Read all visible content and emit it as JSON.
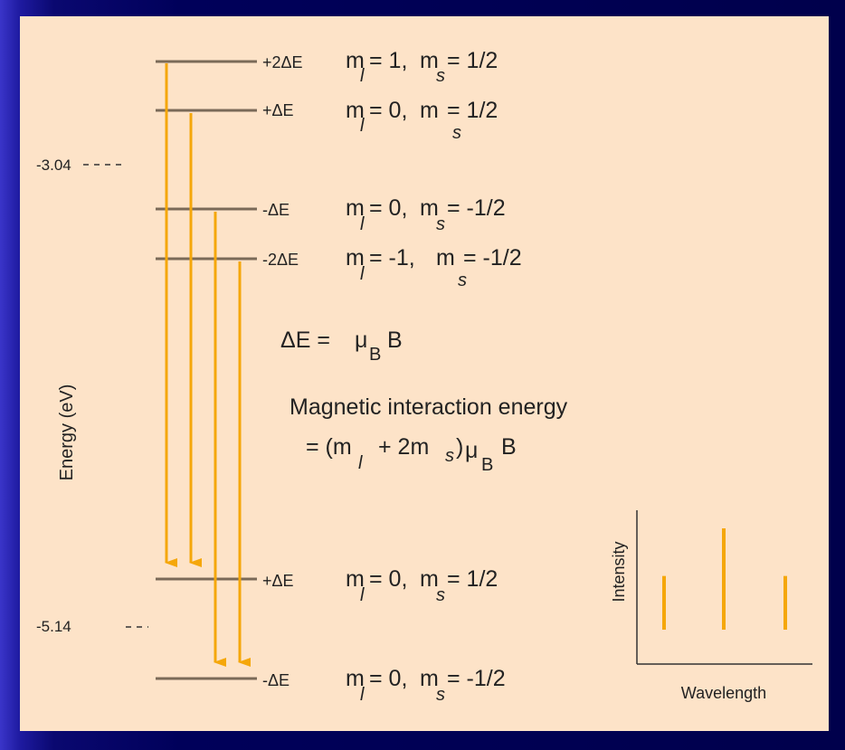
{
  "axis": {
    "label": "Energy (eV)",
    "tick_upper": "-3.04",
    "tick_lower": "-5.14"
  },
  "upper_levels": [
    {
      "shift": "+2ΔE",
      "ml_label": "m",
      "ml_sub": "l",
      "ml_value": "= 1,",
      "ms_label": "m",
      "ms_sub": "s",
      "ms_value": "= 1/2"
    },
    {
      "shift": "+ΔE",
      "ml_label": "m",
      "ml_sub": "l",
      "ml_value": "= 0,",
      "ms_label": "m",
      "ms_sub": "s",
      "ms_value": "= 1/2"
    },
    {
      "shift": "-ΔE",
      "ml_label": "m",
      "ml_sub": "l",
      "ml_value": "= 0,",
      "ms_label": "m",
      "ms_sub": "s",
      "ms_value": "= -1/2"
    },
    {
      "shift": "-2ΔE",
      "ml_label": "m",
      "ml_sub": "l",
      "ml_value": "= -1,",
      "ms_label": "m",
      "ms_sub": "s",
      "ms_value": "= -1/2"
    }
  ],
  "lower_levels": [
    {
      "shift": "+ΔE",
      "ml_label": "m",
      "ml_sub": "l",
      "ml_value": "= 0,",
      "ms_label": "m",
      "ms_sub": "s",
      "ms_value": "= 1/2"
    },
    {
      "shift": "-ΔE",
      "ml_label": "m",
      "ml_sub": "l",
      "ml_value": "= 0,",
      "ms_label": "m",
      "ms_sub": "s",
      "ms_value": "= -1/2"
    }
  ],
  "equation_delta": {
    "lhs": "ΔE = ",
    "mu": "μ",
    "sub": "B",
    "rhs": "B"
  },
  "magnetic": {
    "title": "Magnetic interaction energy",
    "eq_part1": "= (m",
    "eq_sub_l": "l",
    "eq_part2": "+ 2m",
    "eq_sub_s": "s",
    "eq_part3": ")",
    "mu": "μ",
    "mu_sub": "B",
    "eq_end": "B"
  },
  "spectrum": {
    "ylabel": "Intensity",
    "xlabel": "Wavelength",
    "relative_intensities": [
      0.53,
      1.0,
      0.53
    ]
  },
  "colors": {
    "level_line": "#7a6a58",
    "arrow": "#f5a70a",
    "panel": "#fde3c8"
  }
}
